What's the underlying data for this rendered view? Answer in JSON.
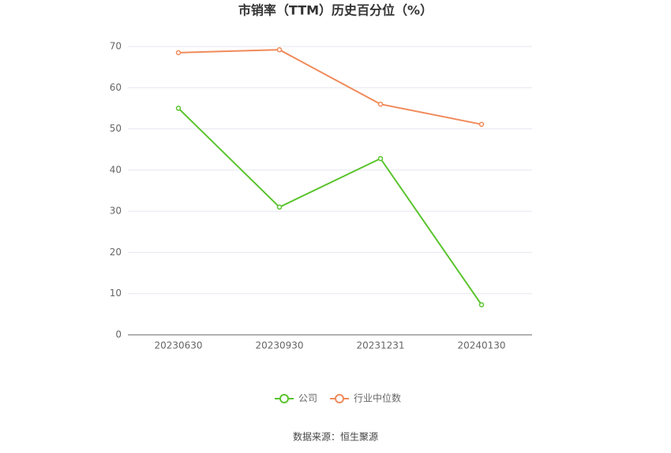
{
  "chart_data": {
    "type": "line",
    "title": "市销率（TTM）历史百分位（%）",
    "categories": [
      "20230630",
      "20230930",
      "20231231",
      "20240130"
    ],
    "series": [
      {
        "name": "公司",
        "color": "#5ac42d",
        "values": [
          55,
          31,
          42.8,
          7.3
        ]
      },
      {
        "name": "行业中位数",
        "color": "#f08a5a",
        "values": [
          68.5,
          69.2,
          56,
          51.1
        ]
      }
    ],
    "ylim": [
      0,
      70
    ],
    "yticks": [
      0,
      10,
      20,
      30,
      40,
      50,
      60,
      70
    ],
    "grid": true,
    "legend": "bottom",
    "source": "数据来源：恒生聚源"
  }
}
